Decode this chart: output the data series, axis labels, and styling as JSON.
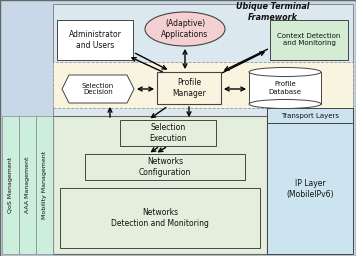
{
  "bg_outer": "#c8d8e8",
  "bg_inner_top": "#dce8f0",
  "bg_middle_dashed": "#f0ece0",
  "bg_bottom": "#e4eedc",
  "bg_side": "#cceedd",
  "bg_transport": "#cce4f0",
  "color_white": "#ffffff",
  "color_pink": "#f5d0d0",
  "color_green_light": "#d4ecd4",
  "color_cream": "#f8f4e0",
  "ubique_title": "Ubique Terminal\nFramework",
  "adaptive_app": "(Adaptive)\nApplications",
  "admin_users": "Administrator\nand Users",
  "context_detect": "Context Detection\nand Monitoring",
  "selection_decision": "Selection\nDecision",
  "profile_manager": "Profile\nManager",
  "profile_database": "Profile\nDatabase",
  "transport_layers": "Transport Layers",
  "selection_execution": "Selection\nExecution",
  "networks_config": "Networks\nConfiguration",
  "networks_detect": "Networks\nDetection and Monitoring",
  "ip_layer": "IP Layer\n(MobileIPv6)",
  "qos": "QoS Management",
  "aaa": "AAA Management",
  "mobility": "Mobility Management"
}
